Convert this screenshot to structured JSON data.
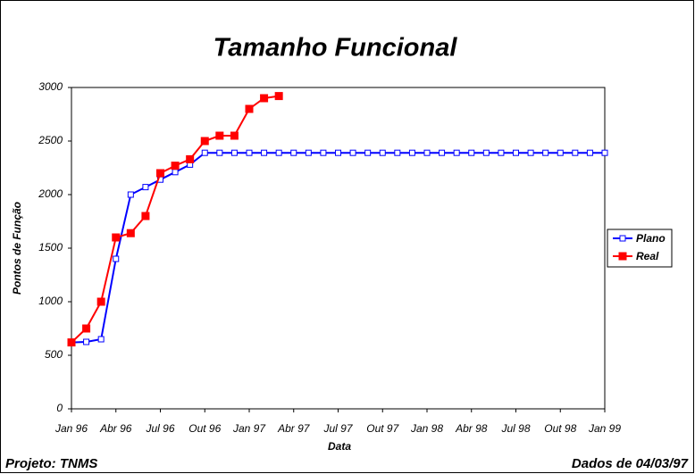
{
  "chart_data": {
    "type": "line",
    "title": "Tamanho Funcional",
    "x_label": "Data",
    "y_label": "Pontos de Função",
    "footer_left": "Projeto: TNMS",
    "footer_right": "Dados de 04/03/97",
    "categories": [
      "Jan 96",
      null,
      null,
      "Abr 96",
      null,
      null,
      "Jul 96",
      null,
      null,
      "Out 96",
      null,
      null,
      "Jan 97",
      null,
      null,
      "Abr 97",
      null,
      null,
      "Jul 97",
      null,
      null,
      "Out 97",
      null,
      null,
      "Jan 98",
      null,
      null,
      "Abr 98",
      null,
      null,
      "Jul 98",
      null,
      null,
      "Out 98",
      null,
      null,
      "Jan 99"
    ],
    "series": [
      {
        "name": "Plano",
        "color": "#0000ff",
        "marker": "hollow-square",
        "values": [
          620,
          625,
          650,
          1400,
          2000,
          2070,
          2140,
          2210,
          2280,
          2390,
          2390,
          2390,
          2390,
          2390,
          2390,
          2390,
          2390,
          2390,
          2390,
          2390,
          2390,
          2390,
          2390,
          2390,
          2390,
          2390,
          2390,
          2390,
          2390,
          2390,
          2390,
          2390,
          2390,
          2390,
          2390,
          2390,
          2390
        ]
      },
      {
        "name": "Real",
        "color": "#ff0000",
        "marker": "filled-square",
        "values": [
          620,
          750,
          1000,
          1600,
          1640,
          1800,
          2200,
          2270,
          2330,
          2500,
          2550,
          2550,
          2800,
          2900,
          2920,
          null,
          null,
          null,
          null,
          null,
          null,
          null,
          null,
          null,
          null,
          null,
          null,
          null,
          null,
          null,
          null,
          null,
          null,
          null,
          null,
          null,
          null
        ]
      }
    ],
    "ylim": [
      0,
      3000
    ],
    "yticks": [
      0,
      500,
      1000,
      1500,
      2000,
      2500,
      3000
    ],
    "grid": false,
    "legend": "right"
  }
}
